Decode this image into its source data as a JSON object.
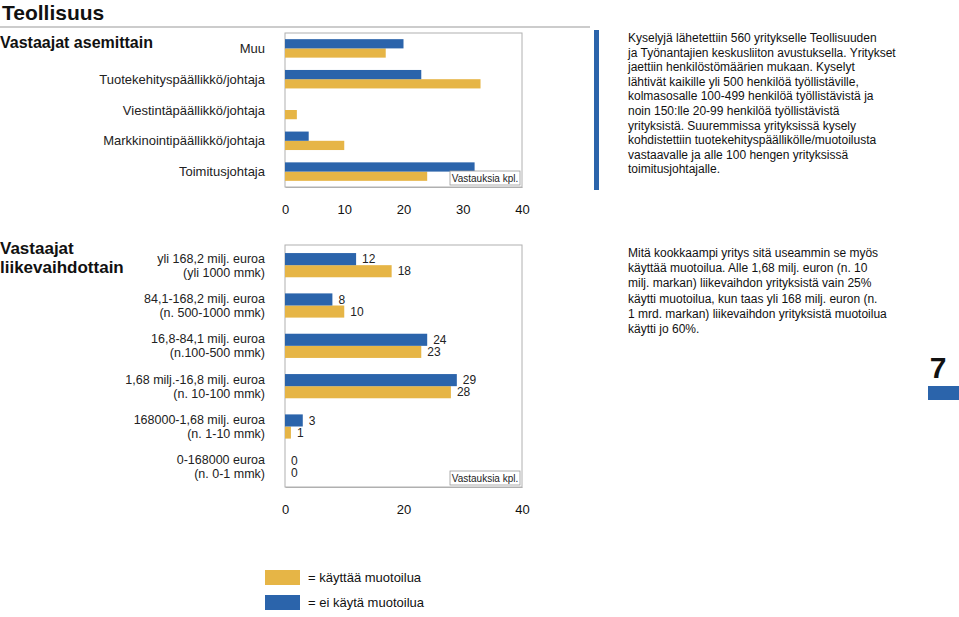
{
  "page": {
    "header": "Teollisuus",
    "page_number": "7"
  },
  "chart_data": [
    {
      "type": "bar",
      "orientation": "horizontal",
      "title": "Vastaajat asemittain",
      "categories": [
        "Muu",
        "Tuotekehityspäällikkö/johtaja",
        "Viestintäpäällikkö/johtaja",
        "Markkinointipäällikkö/johtaja",
        "Toimitusjohtaja"
      ],
      "series": [
        {
          "name": "= käyttää muotoilua",
          "color": "#e6b546",
          "values": [
            17,
            33,
            2,
            10,
            24
          ]
        },
        {
          "name": "= ei käytä muotoilua",
          "color": "#2b64ab",
          "values": [
            20,
            23,
            0,
            4,
            32
          ]
        }
      ],
      "xlabel": "Vastauksia kpl.",
      "xlim": [
        0,
        40
      ],
      "xticks": [
        0,
        10,
        20,
        30,
        40
      ],
      "annotation": [
        "Kyselyjä lähetettiin 560 yritykselle Teollisuuden",
        "ja Työnantajien keskusliiton avustuksella. Yritykset",
        "jaettiin henkilöstömäärien mukaan. Kyselyt",
        "lähtivät kaikille yli 500 henkilöä työllistäville,",
        "kolmasosalle 100-499 henkilöä työllistävistä ja",
        "noin 150:lle 20-99 henkilöä työllistävistä",
        "yrityksistä. Suuremmissa yrityksissä kysely",
        "kohdistettiin tuotekehityspäällikölle/muotoilusta",
        "vastaavalle ja alle 100 hengen yrityksissä",
        "toimitusjohtajalle."
      ]
    },
    {
      "type": "bar",
      "orientation": "horizontal",
      "data_labels": true,
      "title": "Vastaajat\nliikevaihdottain",
      "categories": [
        "yli 168,2 milj. euroa\n(yli 1000 mmk)",
        "84,1-168,2 milj. euroa\n(n. 500-1000 mmk)",
        "16,8-84,1 milj. euroa\n(n.100-500 mmk)",
        "1,68 milj.-16,8 milj. euroa\n(n. 10-100 mmk)",
        "168000-1,68 milj. euroa\n(n. 1-10 mmk)",
        "0-168000 euroa\n(n. 0-1 mmk)"
      ],
      "series": [
        {
          "color": "#e6b546",
          "values": [
            18,
            10,
            23,
            28,
            1,
            0
          ]
        },
        {
          "color": "#2b64ab",
          "values": [
            12,
            8,
            24,
            29,
            3,
            0
          ]
        }
      ],
      "xlabel": "Vastauksia kpl.",
      "xlim": [
        0,
        40
      ],
      "xticks": [
        0,
        20,
        40
      ],
      "annotation": [
        "Mitä kookkaampi yritys sitä useammin se myös",
        "käyttää muotoilua. Alle 1,68 milj. euron (n. 10",
        "milj. markan) liikevaihdon yrityksistä vain 25%",
        "käytti muotoilua, kun taas yli 168 milj. euron (n.",
        "1 mrd. markan) liikevaihdon yrityksistä muotoilua",
        "käytti jo 60%."
      ]
    }
  ]
}
